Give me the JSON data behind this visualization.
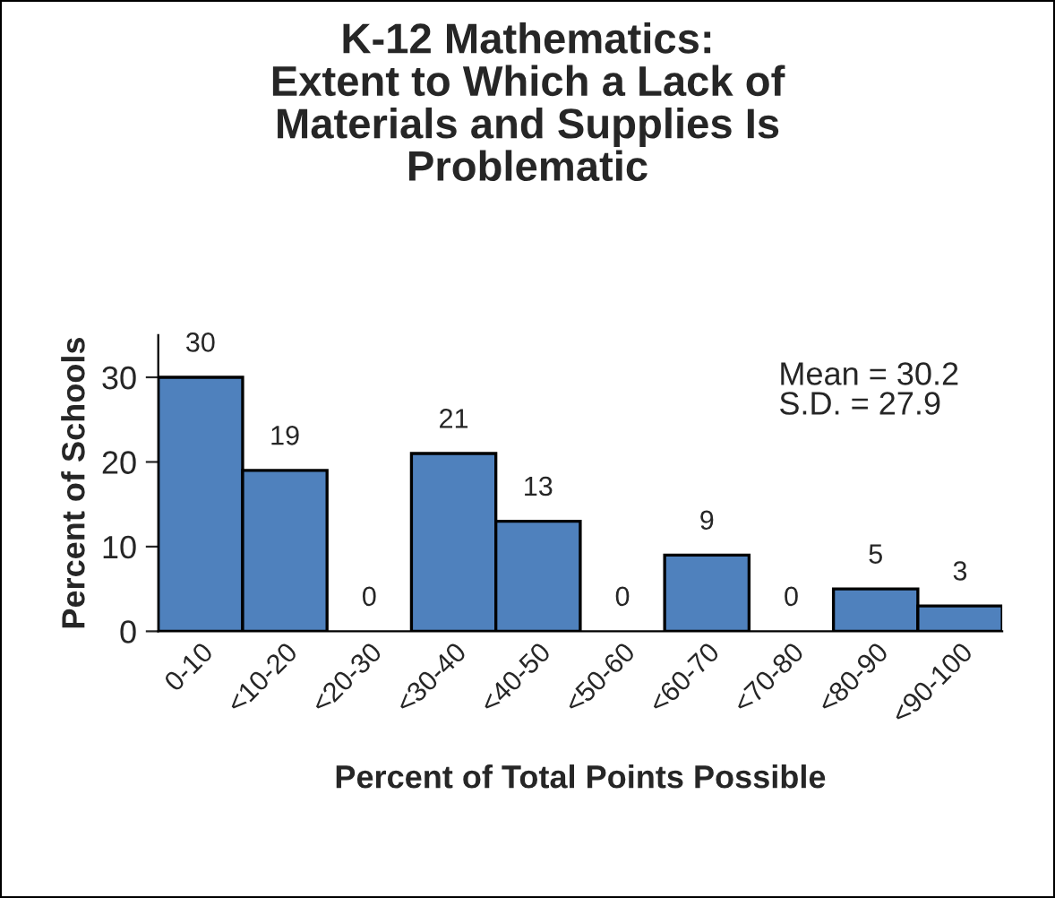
{
  "chart_data": {
    "type": "bar",
    "title": "K-12 Mathematics:\nExtent to Which a Lack of\nMaterials and Supplies Is\nProblematic",
    "xlabel": "Percent of Total Points Possible",
    "ylabel": "Percent of Schools",
    "categories": [
      "0-10",
      "<10-20",
      "<20-30",
      "<30-40",
      "<40-50",
      "<50-60",
      "<60-70",
      "<70-80",
      "<80-90",
      "<90-100"
    ],
    "values": [
      30,
      19,
      0,
      21,
      13,
      0,
      9,
      0,
      5,
      3
    ],
    "color": "#4f81bd",
    "ylim": [
      0,
      35
    ],
    "yticks": [
      0,
      10,
      20,
      30
    ],
    "data_labels": true,
    "grid": false,
    "legend": false,
    "annotations": [
      "Mean = 30.2",
      "S.D. = 27.9"
    ]
  }
}
